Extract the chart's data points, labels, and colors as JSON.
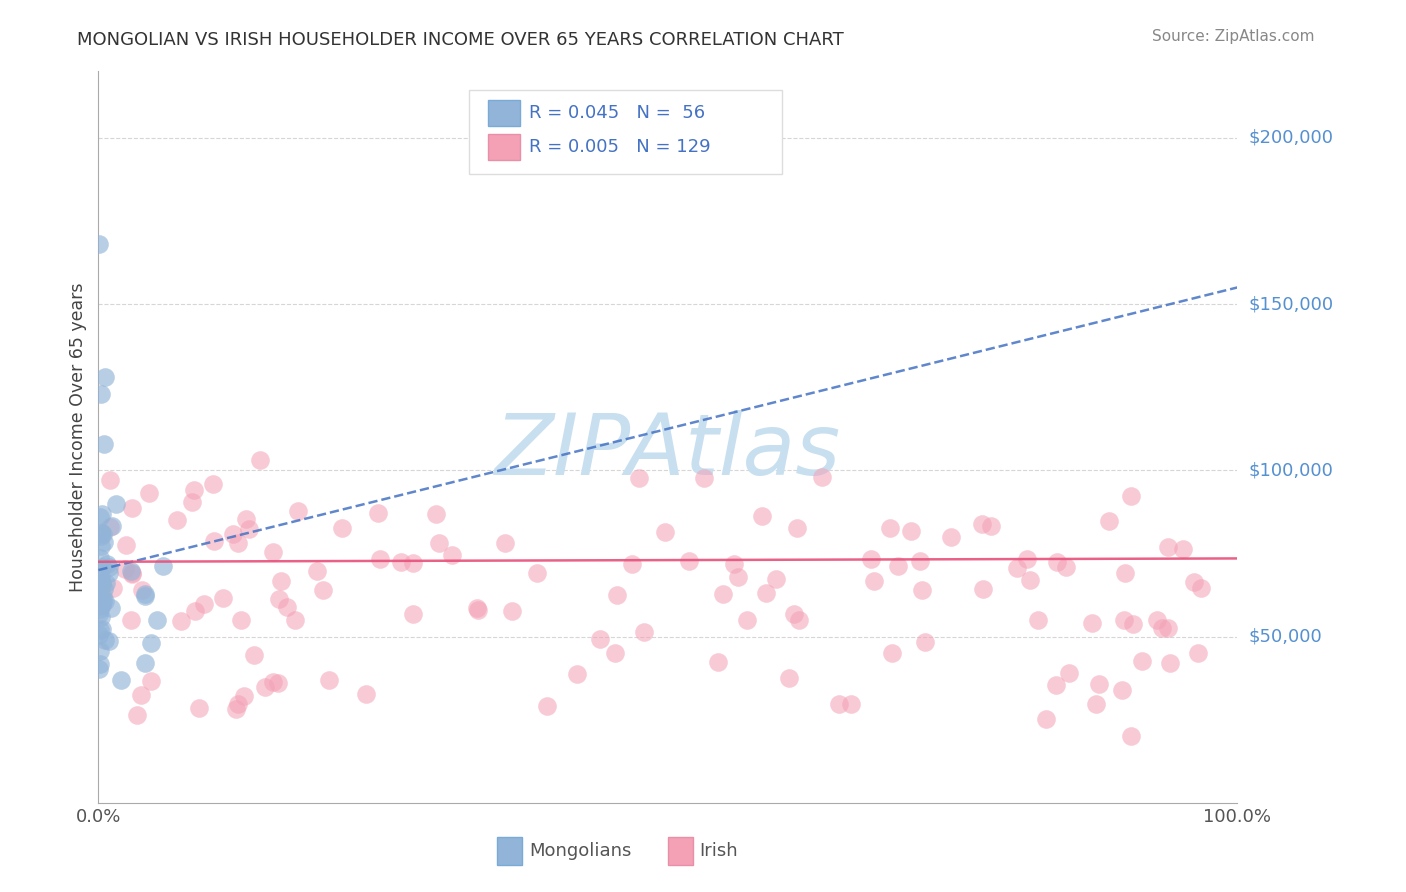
{
  "title": "MONGOLIAN VS IRISH HOUSEHOLDER INCOME OVER 65 YEARS CORRELATION CHART",
  "source": "Source: ZipAtlas.com",
  "ylabel": "Householder Income Over 65 years",
  "mongolian_R": "0.045",
  "mongolian_N": "56",
  "irish_R": "0.005",
  "irish_N": "129",
  "mongolian_color": "#92b4d8",
  "irish_color": "#f4a0b5",
  "mongolian_line_color": "#4472c4",
  "irish_line_color": "#e8507a",
  "legend_text_color": "#4472c4",
  "right_label_color": "#5590d0",
  "background_color": "#ffffff",
  "grid_color": "#cccccc",
  "ylim": [
    0,
    220000
  ],
  "xlim": [
    0.0,
    1.0
  ],
  "watermark": "ZIPAtlas",
  "watermark_color": "#c8dff0",
  "title_color": "#333333",
  "source_color": "#888888",
  "ylabel_color": "#444444"
}
